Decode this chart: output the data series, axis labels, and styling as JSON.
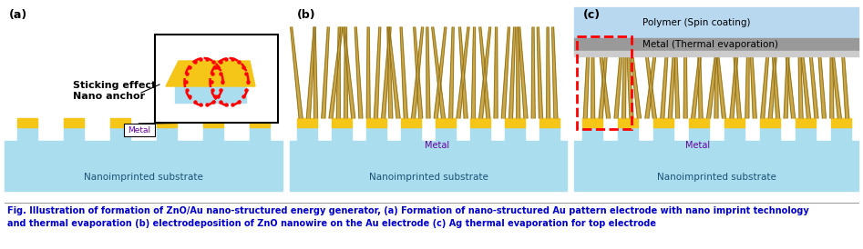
{
  "fig_width": 9.47,
  "fig_height": 2.74,
  "dpi": 100,
  "bg_color": "#ffffff",
  "substrate_color": "#aaddee",
  "metal_base_color": "#f5c518",
  "nanowire_color": "#c8a84b",
  "nanowire_dark": "#8b6914",
  "polymer_color": "#b8d8f0",
  "metal_layer_color": "#999999",
  "metal_layer_color2": "#cccccc",
  "caption_color": "#0000cc",
  "caption_text": "Fig. Illustration of formation of ZnO/Au nano-structured energy generator, (a) Formation of nano-structured Au pattern electrode with nano imprint technology\nand thermal evaporation (b) electrodeposition of ZnO nanowire on the Au electrode (c) Ag thermal evaporation for top electrode",
  "caption_fontsize": 7.0,
  "label_a": "(a)",
  "label_b": "(b)",
  "label_c": "(c)",
  "panel_label_fontsize": 9,
  "sticking_text": "Sticking effect\nNano anchor",
  "metal_label": "Metal",
  "nanoimprint_label": "Nanoimprinted substrate",
  "polymer_label": "Polymer (Spin coating)",
  "metal_evap_label": "Metal (Thermal evaporation)"
}
